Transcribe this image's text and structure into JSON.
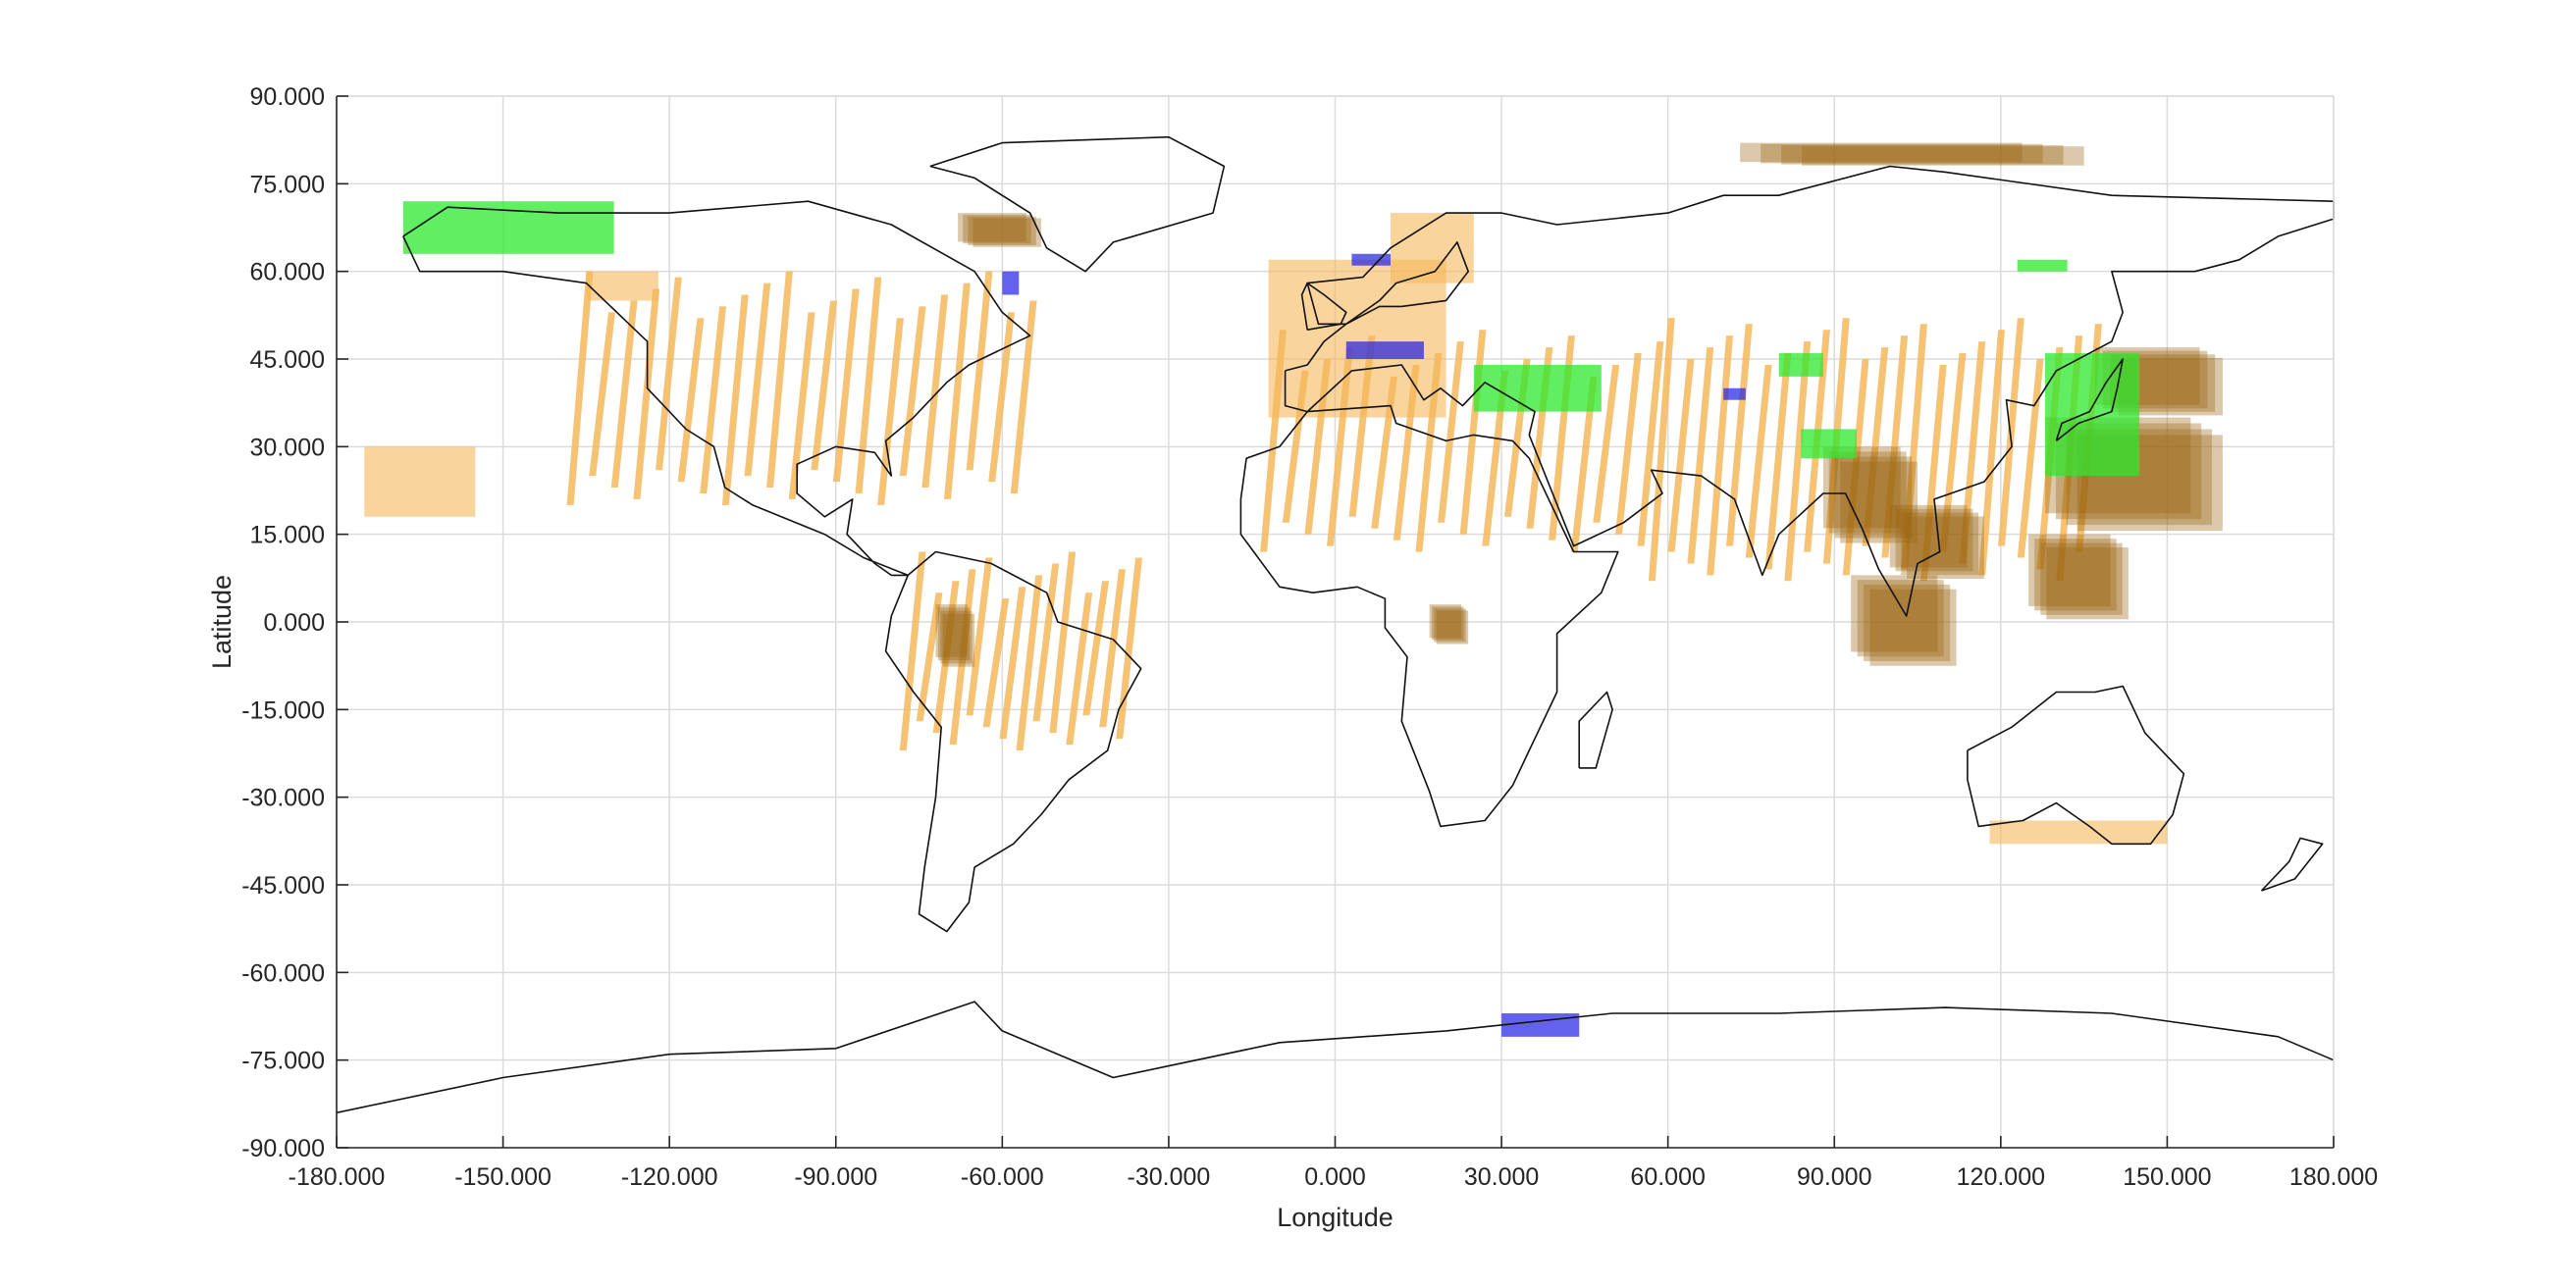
{
  "chart_data": {
    "type": "map",
    "xlabel": "Longitude",
    "ylabel": "Latitude",
    "xlim": [
      -180,
      180
    ],
    "ylim": [
      -90,
      90
    ],
    "xticks": [
      -180,
      -150,
      -120,
      -90,
      -60,
      -30,
      0,
      30,
      60,
      90,
      120,
      150,
      180
    ],
    "yticks": [
      90,
      75,
      60,
      45,
      30,
      15,
      0,
      -15,
      -30,
      -45,
      -60,
      -75,
      -90
    ],
    "xtick_labels": [
      "-180.000",
      "-150.000",
      "-120.000",
      "-90.000",
      "-60.000",
      "-30.000",
      "0.000",
      "30.000",
      "60.000",
      "90.000",
      "120.000",
      "150.000",
      "180.000"
    ],
    "ytick_labels": [
      "90.000",
      "75.000",
      "60.000",
      "45.000",
      "30.000",
      "15.000",
      "0.000",
      "-15.000",
      "-30.000",
      "-45.000",
      "-60.000",
      "-75.000",
      "-90.000"
    ],
    "grid": true,
    "colors": {
      "orange": "#f5b75a",
      "brown": "#9a6410",
      "green": "#2ee82e",
      "blue": "#1f1fe6",
      "tan": "#b88d55"
    },
    "coverage": {
      "orange_strip_regions": [
        {
          "lon": [
            -135,
            -55
          ],
          "lat": [
            20,
            60
          ],
          "spacing": 4
        },
        {
          "lon": [
            -75,
            -35
          ],
          "lat": [
            -22,
            12
          ],
          "spacing": 3
        },
        {
          "lon": [
            -10,
            60
          ],
          "lat": [
            12,
            50
          ],
          "spacing": 4
        },
        {
          "lon": [
            60,
            140
          ],
          "lat": [
            7,
            52
          ],
          "spacing": 3.5
        }
      ],
      "orange_blobs": [
        {
          "lon": [
            -12,
            20
          ],
          "lat": [
            35,
            62
          ]
        },
        {
          "lon": [
            10,
            25
          ],
          "lat": [
            58,
            70
          ]
        },
        {
          "lon": [
            -135,
            -122
          ],
          "lat": [
            55,
            60
          ]
        },
        {
          "lon": [
            -175,
            -155
          ],
          "lat": [
            18,
            30
          ]
        },
        {
          "lon": [
            118,
            150
          ],
          "lat": [
            -38,
            -34
          ]
        }
      ],
      "brown_patches": [
        {
          "lon": [
            73,
            135
          ],
          "lat": [
            78,
            82
          ]
        },
        {
          "lon": [
            88,
            105
          ],
          "lat": [
            13,
            30
          ]
        },
        {
          "lon": [
            93,
            112
          ],
          "lat": [
            -8,
            8
          ]
        },
        {
          "lon": [
            100,
            117
          ],
          "lat": [
            7,
            20
          ]
        },
        {
          "lon": [
            125,
            143
          ],
          "lat": [
            0,
            15
          ]
        },
        {
          "lon": [
            128,
            160
          ],
          "lat": [
            15,
            35
          ]
        },
        {
          "lon": [
            137,
            160
          ],
          "lat": [
            35,
            47
          ]
        },
        {
          "lon": [
            -68,
            -53
          ],
          "lat": [
            64,
            70
          ]
        },
        {
          "lon": [
            17,
            24
          ],
          "lat": [
            -4,
            3
          ]
        },
        {
          "lon": [
            -72,
            -65
          ],
          "lat": [
            -8,
            3
          ]
        }
      ],
      "green_patches": [
        {
          "lon": [
            -168,
            -130
          ],
          "lat": [
            63,
            72
          ]
        },
        {
          "lon": [
            25,
            48
          ],
          "lat": [
            36,
            44
          ]
        },
        {
          "lon": [
            128,
            145
          ],
          "lat": [
            25,
            46
          ]
        },
        {
          "lon": [
            80,
            88
          ],
          "lat": [
            42,
            46
          ]
        },
        {
          "lon": [
            84,
            94
          ],
          "lat": [
            28,
            33
          ]
        },
        {
          "lon": [
            123,
            132
          ],
          "lat": [
            60,
            62
          ]
        }
      ],
      "blue_patches": [
        {
          "lon": [
            30,
            44
          ],
          "lat": [
            -71,
            -67
          ]
        },
        {
          "lon": [
            2,
            16
          ],
          "lat": [
            45,
            48
          ]
        },
        {
          "lon": [
            -60,
            -57
          ],
          "lat": [
            56,
            60
          ]
        },
        {
          "lon": [
            3,
            10
          ],
          "lat": [
            61,
            63
          ]
        },
        {
          "lon": [
            70,
            74
          ],
          "lat": [
            38,
            40
          ]
        }
      ]
    }
  }
}
